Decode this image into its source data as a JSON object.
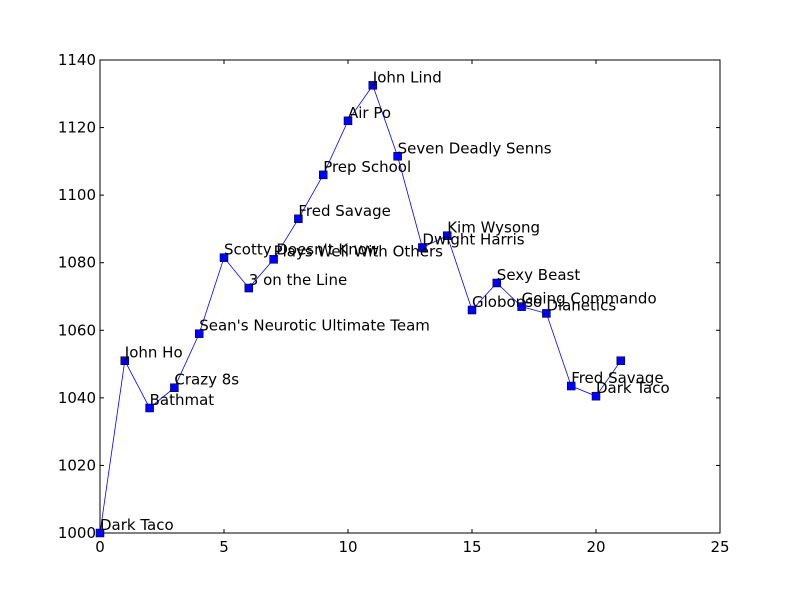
{
  "chart_data": {
    "type": "line",
    "title": "",
    "xlabel": "",
    "ylabel": "",
    "xlim": [
      0,
      25
    ],
    "ylim": [
      1000,
      1140
    ],
    "xticks": [
      0,
      5,
      10,
      15,
      20,
      25
    ],
    "yticks": [
      1000,
      1020,
      1040,
      1060,
      1080,
      1100,
      1120,
      1140
    ],
    "grid": false,
    "colors": {
      "line": "#0000ff",
      "marker": "#0000ff",
      "marker_edge": "#000000"
    },
    "series": [
      {
        "x": [
          0,
          1,
          2,
          3,
          4,
          5,
          6,
          7,
          8,
          9,
          10,
          11,
          12,
          13,
          14,
          15,
          16,
          17,
          18,
          19,
          20,
          21
        ],
        "y": [
          1000,
          1051,
          1037,
          1043,
          1059,
          1081.5,
          1072.5,
          1081,
          1093,
          1106,
          1122,
          1132.5,
          1111.5,
          1084.5,
          1088,
          1066,
          1074,
          1067,
          1065,
          1043.5,
          1040.5,
          1051
        ],
        "labels": [
          "Dark Taco",
          "John Ho",
          "Bathmat",
          "Crazy 8s",
          "Sean's Neurotic Ultimate Team",
          "Scotty Doesn't Know",
          "3 on the Line",
          "Plays Well With Others",
          "Fred Savage",
          "Prep School",
          "Air Po",
          "John Lind",
          "Seven Deadly Senns",
          "Dwight Harris",
          "Kim Wysong",
          "Globonso",
          "Sexy Beast",
          "Going Commando",
          "Dianetics",
          "Fred Savage",
          "Dark Taco",
          ""
        ]
      }
    ]
  }
}
